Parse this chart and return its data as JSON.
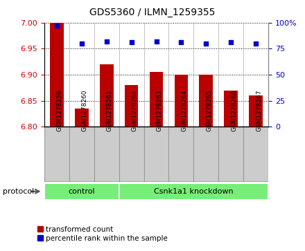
{
  "title": "GDS5360 / ILMN_1259355",
  "samples": [
    "GSM1278259",
    "GSM1278260",
    "GSM1278261",
    "GSM1278262",
    "GSM1278263",
    "GSM1278264",
    "GSM1278265",
    "GSM1278266",
    "GSM1278267"
  ],
  "bar_values": [
    7.0,
    6.835,
    6.92,
    6.88,
    6.905,
    6.9,
    6.9,
    6.87,
    6.86
  ],
  "percentile_values": [
    97,
    80,
    82,
    81,
    82,
    81,
    80,
    81,
    80
  ],
  "ylim_left": [
    6.8,
    7.0
  ],
  "ylim_right": [
    0,
    100
  ],
  "yticks_left": [
    6.8,
    6.85,
    6.9,
    6.95,
    7.0
  ],
  "yticks_right": [
    0,
    25,
    50,
    75,
    100
  ],
  "bar_color": "#BB0000",
  "dot_color": "#0000CC",
  "n_control": 3,
  "control_label": "control",
  "knockdown_label": "Csnk1a1 knockdown",
  "group_color": "#77EE77",
  "protocol_label": "protocol",
  "legend_bar_label": "transformed count",
  "legend_dot_label": "percentile rank within the sample",
  "tick_label_color_left": "#CC0000",
  "tick_label_color_right": "#0000CC",
  "bar_bottom": 6.8,
  "grid_color": "#888888",
  "tickbox_color": "#CCCCCC",
  "tickbox_edge": "#999999"
}
